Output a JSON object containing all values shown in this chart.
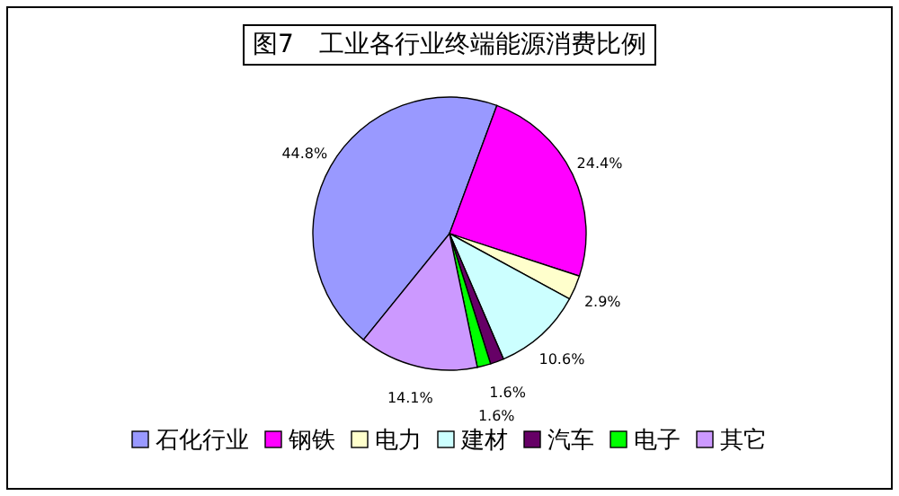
{
  "chart_data": {
    "type": "pie",
    "title": "图7　工业各行业终端能源消费比例",
    "categories": [
      "石化行业",
      "钢铁",
      "电力",
      "建材",
      "汽车",
      "电子",
      "其它"
    ],
    "values": [
      44.8,
      24.4,
      2.9,
      10.6,
      1.6,
      1.6,
      14.1
    ],
    "colors": [
      "#9999ff",
      "#ff00ff",
      "#ffffcc",
      "#ccffff",
      "#660066",
      "#00ff00",
      "#cc99ff"
    ],
    "data_labels": true,
    "value_labels": [
      "44.8%",
      "24.4%",
      "2.9%",
      "10.6%",
      "1.6%",
      "1.6%",
      "14.1%"
    ],
    "legend": "bottom"
  }
}
